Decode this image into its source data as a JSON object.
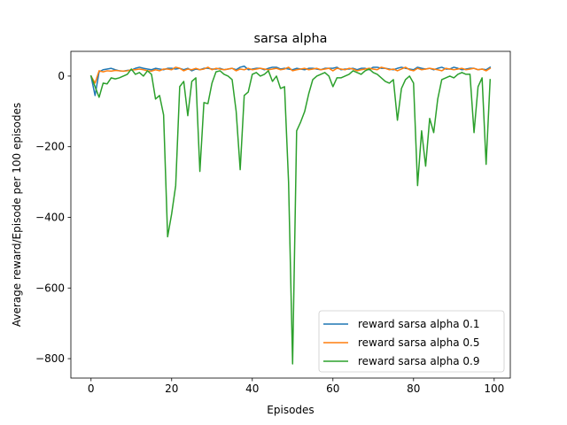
{
  "chart_data": {
    "type": "line",
    "title": "sarsa alpha",
    "xlabel": "Episodes",
    "ylabel": "Average reward/Episode per 100 episodes",
    "xlim": [
      -5,
      104
    ],
    "ylim": [
      -855,
      70
    ],
    "xticks": [
      0,
      20,
      40,
      60,
      80,
      100
    ],
    "yticks": [
      0,
      -200,
      -400,
      -600,
      -800
    ],
    "legend_position": "lower-right",
    "grid": false,
    "series": [
      {
        "name": "reward sarsa alpha 0.1",
        "color": "#1f77b4",
        "values": [
          0,
          -55,
          12,
          18,
          20,
          22,
          18,
          15,
          14,
          16,
          17,
          22,
          25,
          22,
          20,
          18,
          22,
          20,
          18,
          22,
          22,
          20,
          22,
          18,
          22,
          15,
          20,
          18,
          22,
          22,
          20,
          20,
          22,
          18,
          20,
          22,
          18,
          25,
          28,
          18,
          20,
          22,
          22,
          18,
          22,
          25,
          25,
          20,
          22,
          20,
          18,
          22,
          20,
          18,
          22,
          22,
          20,
          18,
          22,
          22,
          22,
          25,
          18,
          20,
          20,
          22,
          18,
          22,
          22,
          18,
          25,
          25,
          22,
          22,
          20,
          18,
          22,
          25,
          22,
          20,
          18,
          25,
          22,
          20,
          22,
          18,
          22,
          25,
          20,
          20,
          25,
          22,
          18,
          20,
          22,
          22,
          18,
          20,
          18,
          25
        ]
      },
      {
        "name": "reward sarsa alpha 0.5",
        "color": "#ff7f0e",
        "values": [
          0,
          -20,
          15,
          12,
          15,
          14,
          16,
          15,
          14,
          15,
          18,
          18,
          20,
          18,
          15,
          14,
          18,
          15,
          20,
          20,
          18,
          25,
          22,
          15,
          20,
          18,
          22,
          18,
          20,
          25,
          18,
          22,
          20,
          18,
          20,
          22,
          15,
          20,
          18,
          22,
          18,
          20,
          22,
          20,
          18,
          20,
          22,
          18,
          20,
          25,
          15,
          18,
          20,
          22,
          18,
          20,
          22,
          18,
          20,
          22,
          15,
          22,
          20,
          18,
          22,
          20,
          15,
          18,
          20,
          22,
          20,
          18,
          25,
          22,
          18,
          20,
          15,
          20,
          25,
          18,
          15,
          22,
          18,
          20,
          22,
          20,
          18,
          15,
          22,
          20,
          18,
          20,
          22,
          18,
          20,
          22,
          18,
          20,
          15,
          22
        ]
      },
      {
        "name": "reward sarsa alpha 0.9",
        "color": "#2ca02c",
        "values": [
          0,
          -30,
          -60,
          -20,
          -22,
          -5,
          -8,
          -5,
          0,
          5,
          20,
          5,
          10,
          0,
          15,
          5,
          -65,
          -55,
          -110,
          -455,
          -390,
          -310,
          -30,
          -15,
          -112,
          -15,
          -5,
          -270,
          -75,
          -78,
          -20,
          12,
          15,
          5,
          0,
          -10,
          -100,
          -265,
          -55,
          -45,
          5,
          10,
          0,
          5,
          15,
          -15,
          0,
          -35,
          -30,
          -300,
          -815,
          -155,
          -130,
          -100,
          -50,
          -10,
          0,
          5,
          10,
          0,
          -30,
          -5,
          -5,
          0,
          5,
          15,
          10,
          5,
          15,
          20,
          10,
          5,
          -5,
          -15,
          -20,
          -10,
          -125,
          -35,
          -10,
          0,
          -20,
          -310,
          -155,
          -255,
          -120,
          -160,
          -65,
          -10,
          -5,
          0,
          -5,
          5,
          10,
          5,
          5,
          -160,
          -30,
          -5,
          -250,
          -10
        ]
      }
    ]
  }
}
